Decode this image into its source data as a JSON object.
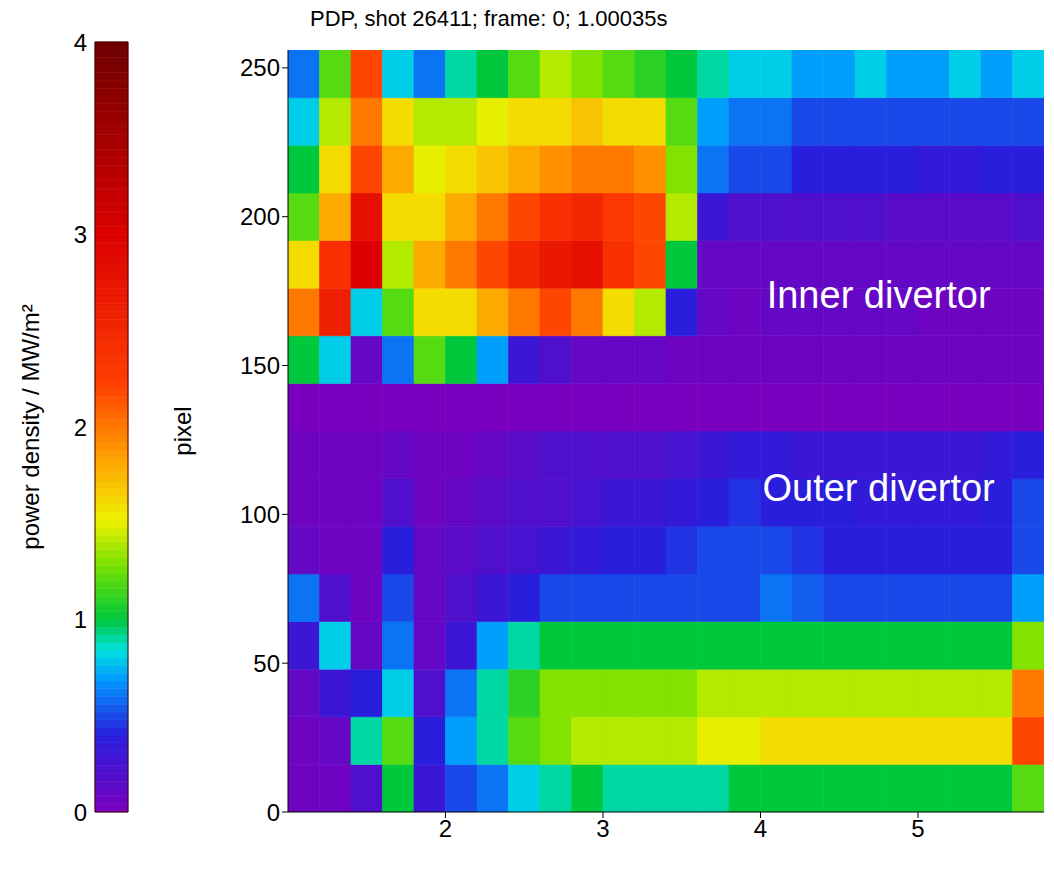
{
  "chart_data": {
    "type": "heatmap",
    "title": "PDP, shot 26411; frame: 0; 1.00035s",
    "ylabel": "pixel",
    "xlim": [
      1,
      5.8
    ],
    "xticks": [
      2,
      3,
      4,
      5
    ],
    "ylim": [
      0,
      256
    ],
    "yticks": [
      0,
      50,
      100,
      150,
      200,
      250
    ],
    "x_bins": [
      1,
      1.2,
      1.4,
      1.6,
      1.8,
      2,
      2.2,
      2.4,
      2.6,
      2.8,
      3,
      3.2,
      3.4,
      3.6,
      3.8,
      4,
      4.2,
      4.4,
      4.6,
      4.8,
      5,
      5.2,
      5.4,
      5.6,
      5.8
    ],
    "y_bins": [
      0,
      16,
      32,
      48,
      64,
      80,
      96,
      112,
      128,
      144,
      160,
      176,
      192,
      208,
      224,
      240,
      256
    ],
    "cells": [
      [
        0.05,
        0.05,
        0.1,
        0.3,
        0.6,
        0.1,
        0.05,
        0.05,
        0,
        1.0,
        2.0,
        1.6,
        1.2,
        1.0,
        0.8,
        0.6
      ],
      [
        0.05,
        0.1,
        0.3,
        0.8,
        0.2,
        0.05,
        0.05,
        0.05,
        0,
        0.8,
        2.6,
        2.4,
        1.8,
        1.6,
        1.4,
        1.2
      ],
      [
        0.2,
        0.9,
        0.4,
        0.1,
        0.05,
        0.05,
        0.05,
        0.05,
        0,
        0.1,
        0.8,
        3.0,
        2.8,
        2.2,
        2.0,
        2.2
      ],
      [
        1.0,
        1.2,
        0.8,
        0.6,
        0.5,
        0.4,
        0.2,
        0.1,
        0,
        0.6,
        1.2,
        1.4,
        1.6,
        1.8,
        1.6,
        0.8
      ],
      [
        0.3,
        0.4,
        0.2,
        0.1,
        0.1,
        0.1,
        0.05,
        0.05,
        0,
        1.2,
        1.6,
        1.8,
        1.6,
        1.5,
        1.4,
        0.6
      ],
      [
        0.5,
        0.7,
        0.6,
        0.3,
        0.2,
        0.15,
        0.1,
        0.05,
        0,
        1.0,
        1.6,
        2.0,
        1.8,
        1.6,
        1.4,
        0.9
      ],
      [
        0.6,
        0.9,
        0.9,
        0.7,
        0.3,
        0.2,
        0.15,
        0.1,
        0,
        0.7,
        1.8,
        2.2,
        2.0,
        1.7,
        1.5,
        1.0
      ],
      [
        0.8,
        1.2,
        1.1,
        0.9,
        0.4,
        0.25,
        0.2,
        0.15,
        0,
        0.3,
        2.0,
        2.5,
        2.2,
        1.8,
        1.6,
        1.2
      ],
      [
        0.9,
        1.3,
        1.3,
        1.0,
        0.5,
        0.3,
        0.2,
        0.2,
        0,
        0.2,
        2.2,
        2.7,
        2.4,
        1.9,
        1.6,
        1.4
      ],
      [
        1.0,
        1.4,
        1.3,
        1.0,
        0.5,
        0.35,
        0.25,
        0.2,
        0,
        0.1,
        2.0,
        2.8,
        2.5,
        2.0,
        1.7,
        1.3
      ],
      [
        0.9,
        1.4,
        1.3,
        1.0,
        0.5,
        0.4,
        0.3,
        0.2,
        0,
        0.1,
        1.6,
        2.4,
        2.3,
        2.0,
        1.6,
        1.2
      ],
      [
        0.9,
        1.4,
        1.3,
        1.0,
        0.5,
        0.4,
        0.3,
        0.2,
        0,
        0.1,
        1.4,
        2.2,
        2.2,
        1.9,
        1.6,
        1.1
      ],
      [
        0.9,
        1.4,
        1.3,
        1.0,
        0.5,
        0.45,
        0.35,
        0.25,
        0,
        0.05,
        0.4,
        1.0,
        1.4,
        1.3,
        1.2,
        1.0
      ],
      [
        0.9,
        1.5,
        1.4,
        1.0,
        0.5,
        0.5,
        0.4,
        0.3,
        0,
        0.05,
        0.1,
        0.1,
        0.3,
        0.6,
        0.7,
        0.9
      ],
      [
        1.0,
        1.5,
        1.4,
        1.0,
        0.5,
        0.5,
        0.45,
        0.35,
        0,
        0.05,
        0.05,
        0.1,
        0.2,
        0.5,
        0.6,
        0.8
      ],
      [
        1.0,
        1.6,
        1.4,
        1.0,
        0.6,
        0.5,
        0.4,
        0.35,
        0,
        0.05,
        0.1,
        0.1,
        0.2,
        0.5,
        0.6,
        0.8
      ],
      [
        1.0,
        1.6,
        1.4,
        1.0,
        0.55,
        0.45,
        0.4,
        0.3,
        0,
        0.05,
        0.1,
        0.1,
        0.2,
        0.4,
        0.5,
        0.7
      ],
      [
        1.0,
        1.6,
        1.4,
        1.0,
        0.5,
        0.4,
        0.4,
        0.3,
        0,
        0.05,
        0.1,
        0.1,
        0.2,
        0.4,
        0.5,
        0.7
      ],
      [
        1.0,
        1.6,
        1.4,
        1.0,
        0.5,
        0.4,
        0.35,
        0.3,
        0,
        0.05,
        0.1,
        0.1,
        0.2,
        0.4,
        0.5,
        0.8
      ],
      [
        1.0,
        1.6,
        1.4,
        1.0,
        0.5,
        0.4,
        0.35,
        0.3,
        0,
        0.05,
        0.1,
        0.1,
        0.15,
        0.4,
        0.5,
        0.7
      ],
      [
        1.0,
        1.6,
        1.4,
        1.0,
        0.5,
        0.4,
        0.35,
        0.3,
        0,
        0.05,
        0.05,
        0.1,
        0.15,
        0.35,
        0.5,
        0.7
      ],
      [
        1.0,
        1.6,
        1.4,
        1.0,
        0.5,
        0.4,
        0.35,
        0.3,
        0,
        0.05,
        0.05,
        0.1,
        0.15,
        0.35,
        0.5,
        0.8
      ],
      [
        1.0,
        1.6,
        1.4,
        1.0,
        0.5,
        0.4,
        0.4,
        0.35,
        0,
        0.05,
        0.05,
        0.1,
        0.15,
        0.4,
        0.5,
        0.7
      ],
      [
        1.2,
        2.2,
        2.0,
        1.3,
        0.7,
        0.5,
        0.5,
        0.4,
        0,
        0.05,
        0.05,
        0.1,
        0.2,
        0.4,
        0.5,
        0.8
      ]
    ],
    "colorbar": {
      "label": "power density / MW/m²",
      "range": [
        0,
        4
      ],
      "ticks": [
        0,
        1,
        2,
        3,
        4
      ]
    },
    "annotations": [
      {
        "text": "Inner divertor",
        "x": 4.75,
        "y": 174
      },
      {
        "text": "Outer divertor",
        "x": 4.75,
        "y": 109
      }
    ]
  }
}
